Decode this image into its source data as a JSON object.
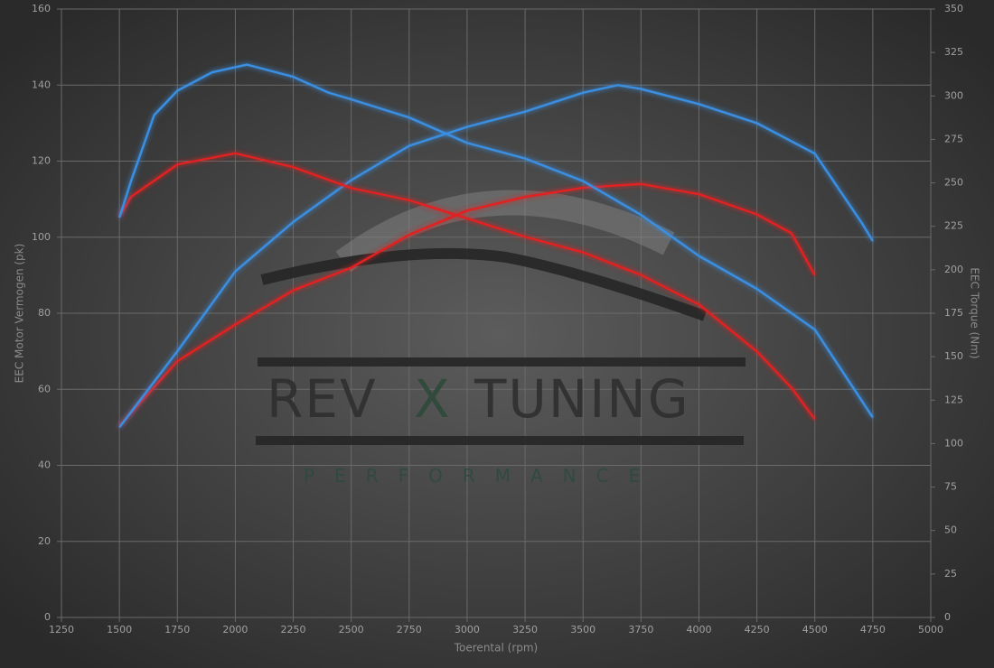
{
  "chart_data": {
    "type": "line",
    "x_label": "Toerental (rpm)",
    "y_label": "EEC Motor Vermogen (pk)",
    "y2_label": "EEC Torque (Nm)",
    "watermark": [
      "REV",
      "X",
      "TUNING"
    ],
    "watermark_sub": "PERFORMANCE",
    "xlim": [
      1250,
      5000
    ],
    "xticks": [
      1250,
      1500,
      1750,
      2000,
      2250,
      2500,
      2750,
      3000,
      3250,
      3500,
      3750,
      4000,
      4250,
      4500,
      4750,
      5000
    ],
    "ylim": [
      0,
      160
    ],
    "yticks": [
      0,
      20,
      40,
      60,
      80,
      100,
      120,
      140,
      160
    ],
    "y2lim": [
      0,
      350
    ],
    "y2ticks": [
      0,
      25,
      50,
      75,
      100,
      125,
      150,
      175,
      200,
      225,
      250,
      275,
      300,
      325,
      350
    ],
    "grid": true,
    "series": [
      {
        "color": "#e02020",
        "x": [
          1500,
          1750,
          2000,
          2250,
          2500,
          2750,
          3000,
          3250,
          3500,
          3750,
          4000,
          4250,
          4400,
          4500
        ],
        "values": [
          50.3,
          67.4,
          77,
          86,
          92,
          100.6,
          107,
          110.6,
          113,
          114,
          111.3,
          106,
          101,
          90
        ]
      },
      {
        "color": "#3a8ee0",
        "x": [
          1500,
          1750,
          2000,
          2250,
          2500,
          2750,
          3000,
          3250,
          3500,
          3650,
          3750,
          4000,
          4250,
          4500,
          4700,
          4750
        ],
        "values": [
          50,
          70,
          91,
          104,
          115,
          124,
          129,
          133,
          138,
          140,
          139,
          135,
          130,
          122,
          104,
          99
        ]
      },
      {
        "color": "#e02020",
        "axis": "y2",
        "x": [
          1500,
          1550,
          1750,
          2000,
          2250,
          2500,
          2750,
          3000,
          3250,
          3500,
          3750,
          4000,
          4250,
          4400,
          4500
        ],
        "values": [
          230.5,
          242,
          260.6,
          267,
          259,
          247,
          240,
          229.5,
          219,
          210,
          197,
          180,
          153,
          132,
          114
        ]
      },
      {
        "color": "#3a8ee0",
        "axis": "y2",
        "x": [
          1500,
          1550,
          1650,
          1750,
          1900,
          2050,
          2250,
          2400,
          2500,
          2750,
          3000,
          3250,
          3500,
          3750,
          4000,
          4250,
          4500,
          4750
        ],
        "values": [
          230,
          251,
          289,
          303,
          313.6,
          318,
          311,
          302,
          298,
          287.6,
          273,
          264,
          251,
          231.6,
          208,
          189,
          165.6,
          115
        ]
      }
    ]
  }
}
